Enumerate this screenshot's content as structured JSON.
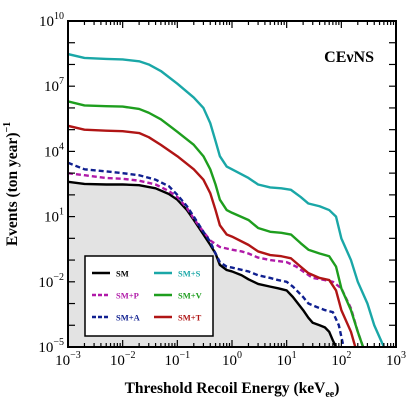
{
  "chart_data": {
    "type": "line",
    "annotation": "CEνNS",
    "xlabel": "Threshold Recoil Energy (keV",
    "xlabel_sub": "ee",
    "xlabel_close": ")",
    "ylabel": "Events (ton year)",
    "ylabel_sup": "−1",
    "xscale": "log",
    "yscale": "log",
    "xlim": [
      0.001,
      1000
    ],
    "ylim": [
      1e-05,
      10000000000.0
    ],
    "x_ticks": [
      {
        "base": "10",
        "exp": "−3",
        "value": 0.001
      },
      {
        "base": "10",
        "exp": "−2",
        "value": 0.01
      },
      {
        "base": "10",
        "exp": "−1",
        "value": 0.1
      },
      {
        "base": "10",
        "exp": "0",
        "value": 1
      },
      {
        "base": "10",
        "exp": "1",
        "value": 10
      },
      {
        "base": "10",
        "exp": "2",
        "value": 100
      },
      {
        "base": "10",
        "exp": "3",
        "value": 1000
      }
    ],
    "y_ticks": [
      {
        "base": "10",
        "exp": "−5",
        "value": 1e-05
      },
      {
        "base": "10",
        "exp": "−2",
        "value": 0.01
      },
      {
        "base": "10",
        "exp": "1",
        "value": 10
      },
      {
        "base": "10",
        "exp": "4",
        "value": 10000
      },
      {
        "base": "10",
        "exp": "7",
        "value": 10000000.0
      },
      {
        "base": "10",
        "exp": "10",
        "value": 10000000000.0
      }
    ],
    "legend_position": "bottom-left",
    "grid": false,
    "series": [
      {
        "name": "SM",
        "color": "#000000",
        "dash": "solid",
        "fill": "#e3e3e3",
        "points": [
          [
            0.001,
            400
          ],
          [
            0.002,
            320
          ],
          [
            0.005,
            300
          ],
          [
            0.01,
            300
          ],
          [
            0.02,
            280
          ],
          [
            0.04,
            200
          ],
          [
            0.07,
            110
          ],
          [
            0.1,
            60
          ],
          [
            0.15,
            20
          ],
          [
            0.2,
            7
          ],
          [
            0.3,
            1.5
          ],
          [
            0.4,
            0.5
          ],
          [
            0.5,
            0.2
          ],
          [
            0.6,
            0.06
          ],
          [
            0.8,
            0.035
          ],
          [
            1,
            0.03
          ],
          [
            1.5,
            0.02
          ],
          [
            2,
            0.013
          ],
          [
            3,
            0.008
          ],
          [
            5,
            0.006
          ],
          [
            7,
            0.005
          ],
          [
            10,
            0.004
          ],
          [
            13,
            0.002
          ],
          [
            20,
            0.0005
          ],
          [
            25,
            0.00022
          ],
          [
            30,
            0.00013
          ],
          [
            40,
            0.0001
          ],
          [
            50,
            8e-05
          ],
          [
            60,
            5e-05
          ],
          [
            70,
            2e-05
          ],
          [
            80,
            1e-05
          ]
        ]
      },
      {
        "name": "SM+S",
        "color": "#1aa7a7",
        "dash": "solid",
        "points": [
          [
            0.001,
            300000000.0
          ],
          [
            0.002,
            200000000.0
          ],
          [
            0.005,
            180000000.0
          ],
          [
            0.01,
            170000000.0
          ],
          [
            0.02,
            140000000.0
          ],
          [
            0.03,
            100000000.0
          ],
          [
            0.05,
            50000000.0
          ],
          [
            0.1,
            13000000.0
          ],
          [
            0.2,
            3000000.0
          ],
          [
            0.3,
            1000000.0
          ],
          [
            0.4,
            200000.0
          ],
          [
            0.5,
            30000.0
          ],
          [
            0.6,
            6000
          ],
          [
            0.8,
            2000
          ],
          [
            1,
            1500
          ],
          [
            2,
            600
          ],
          [
            3,
            300
          ],
          [
            5,
            220
          ],
          [
            8,
            200
          ],
          [
            12,
            170
          ],
          [
            18,
            80
          ],
          [
            25,
            40
          ],
          [
            40,
            30
          ],
          [
            60,
            20
          ],
          [
            80,
            10
          ],
          [
            100,
            1
          ],
          [
            150,
            0.1
          ],
          [
            200,
            0.01
          ],
          [
            300,
            0.001
          ],
          [
            400,
            0.0001
          ],
          [
            600,
            1e-05
          ]
        ]
      },
      {
        "name": "SM+P",
        "color": "#b01aa8",
        "dash": "dashed",
        "points": [
          [
            0.001,
            1000
          ],
          [
            0.002,
            800
          ],
          [
            0.005,
            600
          ],
          [
            0.01,
            550
          ],
          [
            0.02,
            450
          ],
          [
            0.04,
            300
          ],
          [
            0.07,
            150
          ],
          [
            0.1,
            80
          ],
          [
            0.15,
            25
          ],
          [
            0.2,
            8
          ],
          [
            0.3,
            2
          ],
          [
            0.4,
            0.8
          ],
          [
            0.6,
            0.4
          ],
          [
            1,
            0.3
          ],
          [
            1.5,
            0.25
          ],
          [
            2,
            0.2
          ],
          [
            3,
            0.13
          ],
          [
            5,
            0.1
          ],
          [
            10,
            0.08
          ],
          [
            15,
            0.05
          ],
          [
            20,
            0.03
          ],
          [
            30,
            0.015
          ],
          [
            50,
            0.012
          ],
          [
            70,
            0.01
          ],
          [
            100,
            0.005
          ],
          [
            150,
            0.0006
          ],
          [
            200,
            5e-05
          ],
          [
            250,
            1e-05
          ]
        ]
      },
      {
        "name": "SM+V",
        "color": "#1e9e1e",
        "dash": "solid",
        "points": [
          [
            0.001,
            2000000.0
          ],
          [
            0.002,
            1300000.0
          ],
          [
            0.005,
            1200000.0
          ],
          [
            0.01,
            1150000.0
          ],
          [
            0.02,
            900000.0
          ],
          [
            0.03,
            600000.0
          ],
          [
            0.05,
            300000.0
          ],
          [
            0.1,
            80000.0
          ],
          [
            0.2,
            20000.0
          ],
          [
            0.3,
            6000
          ],
          [
            0.4,
            1500
          ],
          [
            0.5,
            300
          ],
          [
            0.6,
            60
          ],
          [
            0.8,
            20
          ],
          [
            1,
            15
          ],
          [
            2,
            7
          ],
          [
            3,
            3
          ],
          [
            5,
            2
          ],
          [
            8,
            1.8
          ],
          [
            12,
            1.5
          ],
          [
            18,
            0.6
          ],
          [
            25,
            0.3
          ],
          [
            40,
            0.2
          ],
          [
            60,
            0.15
          ],
          [
            80,
            0.05
          ],
          [
            100,
            0.005
          ],
          [
            150,
            0.0005
          ],
          [
            200,
            5e-05
          ],
          [
            250,
            1e-05
          ]
        ]
      },
      {
        "name": "SM+A",
        "color": "#102090",
        "dash": "dashed",
        "points": [
          [
            0.001,
            3000
          ],
          [
            0.002,
            1500
          ],
          [
            0.005,
            1200
          ],
          [
            0.01,
            1000
          ],
          [
            0.02,
            800
          ],
          [
            0.04,
            500
          ],
          [
            0.07,
            250
          ],
          [
            0.1,
            100
          ],
          [
            0.15,
            30
          ],
          [
            0.2,
            10
          ],
          [
            0.3,
            2
          ],
          [
            0.4,
            0.7
          ],
          [
            0.5,
            0.2
          ],
          [
            0.6,
            0.08
          ],
          [
            0.8,
            0.05
          ],
          [
            1,
            0.045
          ],
          [
            2,
            0.03
          ],
          [
            3,
            0.02
          ],
          [
            5,
            0.015
          ],
          [
            7,
            0.012
          ],
          [
            10,
            0.01
          ],
          [
            13,
            0.006
          ],
          [
            20,
            0.002
          ],
          [
            25,
            0.001
          ],
          [
            35,
            0.0007
          ],
          [
            50,
            0.0005
          ],
          [
            70,
            0.0004
          ],
          [
            90,
            0.0001
          ],
          [
            110,
            1e-05
          ]
        ]
      },
      {
        "name": "SM+T",
        "color": "#b01515",
        "dash": "solid",
        "points": [
          [
            0.001,
            150000.0
          ],
          [
            0.002,
            100000.0
          ],
          [
            0.005,
            90000.0
          ],
          [
            0.01,
            85000.0
          ],
          [
            0.02,
            70000.0
          ],
          [
            0.03,
            45000.0
          ],
          [
            0.05,
            20000.0
          ],
          [
            0.1,
            6000
          ],
          [
            0.2,
            1500
          ],
          [
            0.3,
            500
          ],
          [
            0.4,
            120
          ],
          [
            0.5,
            20
          ],
          [
            0.6,
            4
          ],
          [
            0.8,
            1.5
          ],
          [
            1,
            1.2
          ],
          [
            2,
            0.5
          ],
          [
            3,
            0.25
          ],
          [
            5,
            0.17
          ],
          [
            8,
            0.15
          ],
          [
            12,
            0.12
          ],
          [
            18,
            0.05
          ],
          [
            25,
            0.025
          ],
          [
            40,
            0.015
          ],
          [
            60,
            0.012
          ],
          [
            80,
            0.004
          ],
          [
            100,
            0.0005
          ],
          [
            150,
            5e-05
          ],
          [
            180,
            1e-05
          ]
        ]
      }
    ]
  }
}
